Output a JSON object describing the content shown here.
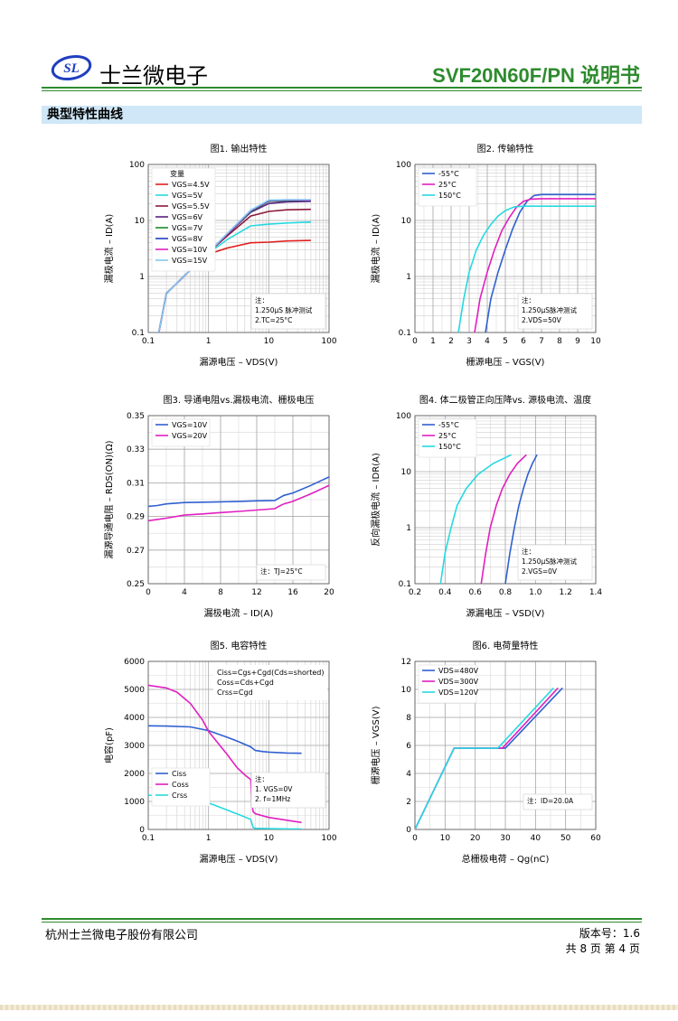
{
  "header": {
    "logo_text": "SL",
    "company": "士兰微电子",
    "doc_title": "SVF20N60F/PN 说明书"
  },
  "section_title": "典型特性曲线",
  "colors": {
    "accent_green": "#2e8b2e",
    "section_bg": "#cfe7f7"
  },
  "chart_data": [
    {
      "id": "fig1",
      "type": "line",
      "title": "图1. 输出特性",
      "xlabel": "漏源电压 – VDS(V)",
      "ylabel": "漏极电流 – ID(A)",
      "xscale": "log",
      "yscale": "log",
      "xlim": [
        0.1,
        100
      ],
      "ylim": [
        0.1,
        100
      ],
      "xticks": [
        0.1,
        1,
        10,
        100
      ],
      "xtick_labels": [
        "0.1",
        "1",
        "10",
        "100"
      ],
      "yticks": [
        0.1,
        1,
        10,
        100
      ],
      "ytick_labels": [
        "0.1",
        "1",
        "10",
        "100"
      ],
      "legend_title": "变量",
      "legend_position": "top-left",
      "note": [
        "注：",
        "1.250μS 脉冲测试",
        "2.TC=25°C"
      ],
      "series": [
        {
          "name": "VGS=4.5V",
          "color": "#e02020",
          "x": [
            0.15,
            0.2,
            0.5,
            1,
            2,
            5,
            10,
            20,
            50
          ],
          "y": [
            0.1,
            0.5,
            1.3,
            2.5,
            3.2,
            4.0,
            4.1,
            4.3,
            4.4
          ]
        },
        {
          "name": "VGS=5V",
          "color": "#27d9e0",
          "x": [
            0.15,
            0.2,
            0.5,
            1,
            2,
            5,
            10,
            20,
            50
          ],
          "y": [
            0.1,
            0.5,
            1.3,
            2.6,
            4.5,
            8.0,
            8.6,
            9.0,
            9.4
          ]
        },
        {
          "name": "VGS=5.5V",
          "color": "#8b1a3a",
          "x": [
            0.15,
            0.2,
            0.5,
            1,
            2,
            5,
            10,
            20,
            50
          ],
          "y": [
            0.1,
            0.5,
            1.3,
            2.7,
            5.2,
            12.0,
            14.5,
            15.5,
            15.8
          ]
        },
        {
          "name": "VGS=6V",
          "color": "#5a2080",
          "x": [
            0.15,
            0.2,
            0.5,
            1,
            2,
            5,
            10,
            20,
            50
          ],
          "y": [
            0.1,
            0.5,
            1.3,
            2.7,
            5.5,
            14.0,
            20.0,
            21.5,
            22.0
          ]
        },
        {
          "name": "VGS=7V",
          "color": "#1a8a2a",
          "x": [
            0.15,
            0.2,
            0.5,
            1,
            2,
            5,
            10,
            20,
            50
          ],
          "y": [
            0.1,
            0.5,
            1.3,
            2.7,
            5.6,
            14.5,
            22.0,
            22.5,
            23.0
          ]
        },
        {
          "name": "VGS=8V",
          "color": "#1f3fc0",
          "x": [
            0.15,
            0.2,
            0.5,
            1,
            2,
            5,
            10,
            20,
            50
          ],
          "y": [
            0.1,
            0.5,
            1.3,
            2.7,
            5.6,
            14.8,
            22.5,
            23.0,
            23.0
          ]
        },
        {
          "name": "VGS=10V",
          "color": "#e020c0",
          "x": [
            0.15,
            0.2,
            0.5,
            1,
            2,
            5,
            10,
            20,
            50
          ],
          "y": [
            0.1,
            0.5,
            1.3,
            2.7,
            5.6,
            15.0,
            22.8,
            23.2,
            23.2
          ]
        },
        {
          "name": "VGS=15V",
          "color": "#80c8f0",
          "x": [
            0.15,
            0.2,
            0.5,
            1,
            2,
            5,
            10,
            20,
            50
          ],
          "y": [
            0.1,
            0.5,
            1.3,
            2.7,
            5.7,
            15.2,
            23.0,
            23.5,
            23.5
          ]
        }
      ]
    },
    {
      "id": "fig2",
      "type": "line",
      "title": "图2. 传输特性",
      "xlabel": "栅源电压 – VGS(V)",
      "ylabel": "漏极电流 – ID(A)",
      "xscale": "linear",
      "yscale": "log",
      "xlim": [
        0,
        10
      ],
      "ylim": [
        0.1,
        100
      ],
      "xticks": [
        0,
        1,
        2,
        3,
        4,
        5,
        6,
        7,
        8,
        9,
        10
      ],
      "xtick_labels": [
        "0",
        "1",
        "2",
        "3",
        "4",
        "5",
        "6",
        "7",
        "8",
        "9",
        "10"
      ],
      "yticks": [
        0.1,
        1,
        10,
        100
      ],
      "ytick_labels": [
        "0.1",
        "1",
        "10",
        "100"
      ],
      "legend_position": "top-left",
      "note": [
        "注：",
        "1.250μS脉冲测试",
        "2.VDS=50V"
      ],
      "series": [
        {
          "name": "-55°C",
          "color": "#3060d0",
          "x": [
            3.9,
            4.2,
            4.6,
            5.0,
            5.4,
            5.8,
            6.2,
            6.6,
            7,
            8,
            10
          ],
          "y": [
            0.1,
            0.4,
            1.2,
            3.0,
            7.0,
            14.0,
            22.0,
            28.0,
            29.0,
            29.0,
            29.0
          ]
        },
        {
          "name": "25°C",
          "color": "#e020c0",
          "x": [
            3.3,
            3.6,
            4.0,
            4.4,
            4.8,
            5.2,
            5.6,
            6.0,
            6.4,
            7,
            10
          ],
          "y": [
            0.1,
            0.4,
            1.2,
            3.0,
            6.5,
            11.0,
            17.0,
            22.0,
            24.0,
            24.5,
            24.5
          ]
        },
        {
          "name": "150°C",
          "color": "#27d9e0",
          "x": [
            2.4,
            2.7,
            3.0,
            3.4,
            3.8,
            4.2,
            4.6,
            5.0,
            5.5,
            6,
            10
          ],
          "y": [
            0.1,
            0.4,
            1.2,
            3.0,
            5.5,
            8.5,
            12.0,
            15.0,
            17.5,
            18.0,
            18.0
          ]
        }
      ]
    },
    {
      "id": "fig3",
      "type": "line",
      "title": "图3. 导通电阻vs.漏极电流、栅极电压",
      "xlabel": "漏极电流 – ID(A)",
      "ylabel": "漏源导通电阻 – RDS(ON)(Ω)",
      "xscale": "linear",
      "yscale": "linear",
      "xlim": [
        0,
        20
      ],
      "ylim": [
        0.25,
        0.35
      ],
      "xticks": [
        0,
        4,
        8,
        12,
        16,
        20
      ],
      "xtick_labels": [
        "0",
        "4",
        "8",
        "12",
        "16",
        "20"
      ],
      "yticks": [
        0.25,
        0.27,
        0.29,
        0.31,
        0.33,
        0.35
      ],
      "ytick_labels": [
        "0.25",
        "0.27",
        "0.29",
        "0.31",
        "0.33",
        "0.35"
      ],
      "legend_position": "top-left",
      "note": [
        "注：TJ=25°C"
      ],
      "series": [
        {
          "name": "VGS=10V",
          "color": "#3060d0",
          "x": [
            0,
            1,
            2,
            4,
            6,
            8,
            10,
            12,
            14,
            14.5,
            15,
            16,
            18,
            20
          ],
          "y": [
            0.296,
            0.2965,
            0.2975,
            0.2983,
            0.2985,
            0.2987,
            0.299,
            0.2993,
            0.2995,
            0.301,
            0.3025,
            0.304,
            0.3085,
            0.3135
          ]
        },
        {
          "name": "VGS=20V",
          "color": "#e020c0",
          "x": [
            0,
            1,
            2,
            4,
            6,
            8,
            10,
            12,
            14,
            14.5,
            15,
            16,
            18,
            20
          ],
          "y": [
            0.2875,
            0.2882,
            0.289,
            0.2908,
            0.2915,
            0.2923,
            0.293,
            0.2938,
            0.2946,
            0.2962,
            0.2975,
            0.299,
            0.3035,
            0.3085
          ]
        }
      ]
    },
    {
      "id": "fig4",
      "type": "line",
      "title": "图4. 体二极管正向压降vs. 源极电流、温度",
      "xlabel": "源漏电压 – VSD(V)",
      "ylabel": "反向漏极电流 – IDR(A)",
      "xscale": "linear",
      "yscale": "log",
      "xlim": [
        0.2,
        1.4
      ],
      "ylim": [
        0.1,
        100
      ],
      "xticks": [
        0.2,
        0.4,
        0.6,
        0.8,
        1.0,
        1.2,
        1.4
      ],
      "xtick_labels": [
        "0.2",
        "0.4",
        "0.6",
        "0.8",
        "1.0",
        "1.2",
        "1.4"
      ],
      "yticks": [
        0.1,
        1,
        10,
        100
      ],
      "ytick_labels": [
        "0.1",
        "1",
        "10",
        "100"
      ],
      "legend_position": "top-left",
      "note": [
        "注：",
        "1.250μS脉冲测试",
        "2.VGS=0V"
      ],
      "series": [
        {
          "name": "-55°C",
          "color": "#3060d0",
          "x": [
            0.8,
            0.83,
            0.86,
            0.89,
            0.92,
            0.95,
            0.98,
            1.01
          ],
          "y": [
            0.1,
            0.35,
            1.0,
            2.5,
            5.0,
            9.0,
            14.0,
            20.0
          ]
        },
        {
          "name": "25°C",
          "color": "#e020c0",
          "x": [
            0.64,
            0.67,
            0.7,
            0.74,
            0.78,
            0.83,
            0.88,
            0.94
          ],
          "y": [
            0.1,
            0.35,
            1.0,
            2.5,
            5.0,
            9.0,
            14.0,
            20.0
          ]
        },
        {
          "name": "150°C",
          "color": "#27d9e0",
          "x": [
            0.37,
            0.4,
            0.44,
            0.48,
            0.54,
            0.62,
            0.72,
            0.84
          ],
          "y": [
            0.1,
            0.35,
            1.0,
            2.5,
            5.0,
            9.0,
            14.0,
            20.0
          ]
        }
      ]
    },
    {
      "id": "fig5",
      "type": "line",
      "title": "图5. 电容特性",
      "xlabel": "漏源电压 – VDS(V)",
      "ylabel": "电容(pF)",
      "xscale": "log",
      "yscale": "linear",
      "xlim": [
        0.1,
        100
      ],
      "ylim": [
        0,
        6000
      ],
      "xticks": [
        0.1,
        1,
        10,
        100
      ],
      "xtick_labels": [
        "0.1",
        "1",
        "10",
        "100"
      ],
      "yticks": [
        0,
        1000,
        2000,
        3000,
        4000,
        5000,
        6000
      ],
      "ytick_labels": [
        "0",
        "1000",
        "2000",
        "3000",
        "4000",
        "5000",
        "6000"
      ],
      "formula_box": [
        "Ciss=Cgs+Cgd(Cds=shorted)",
        "Coss=Cds+Cgd",
        "Crss=Cgd"
      ],
      "legend_position": "bottom-left",
      "note": [
        "注：",
        "1. VGS=0V",
        "2. f=1MHz"
      ],
      "series": [
        {
          "name": "Ciss",
          "color": "#3060d0",
          "x": [
            0.1,
            0.2,
            0.5,
            1,
            2,
            3,
            5,
            6,
            8,
            10,
            20,
            35
          ],
          "y": [
            3700,
            3690,
            3660,
            3530,
            3300,
            3150,
            2950,
            2820,
            2780,
            2760,
            2730,
            2720
          ]
        },
        {
          "name": "Coss",
          "color": "#e020c0",
          "x": [
            0.1,
            0.2,
            0.3,
            0.5,
            0.8,
            1,
            2,
            3,
            4,
            5,
            5.3,
            5.5,
            6,
            10,
            20,
            35
          ],
          "y": [
            5150,
            5050,
            4900,
            4500,
            3900,
            3500,
            2700,
            2200,
            1950,
            1780,
            850,
            640,
            560,
            430,
            330,
            250
          ]
        },
        {
          "name": "Crss",
          "color": "#27d9e0",
          "x": [
            0.1,
            0.2,
            0.5,
            1,
            2,
            3,
            5,
            5.5,
            6,
            10,
            20,
            35
          ],
          "y": [
            1220,
            1210,
            1130,
            950,
            700,
            550,
            360,
            70,
            40,
            30,
            20,
            15
          ]
        }
      ]
    },
    {
      "id": "fig6",
      "type": "line",
      "title": "图6. 电荷量特性",
      "xlabel": "总栅极电荷 – Qg(nC)",
      "ylabel": "栅源电压 – VGS(V)",
      "xscale": "linear",
      "yscale": "linear",
      "xlim": [
        0,
        60
      ],
      "ylim": [
        0,
        12
      ],
      "xticks": [
        0,
        10,
        20,
        30,
        40,
        50,
        60
      ],
      "xtick_labels": [
        "0",
        "10",
        "20",
        "30",
        "40",
        "50",
        "60"
      ],
      "yticks": [
        0,
        2,
        4,
        6,
        8,
        10,
        12
      ],
      "ytick_labels": [
        "0",
        "2",
        "4",
        "6",
        "8",
        "10",
        "12"
      ],
      "legend_position": "top-left",
      "note": [
        "注：ID=20.0A"
      ],
      "series": [
        {
          "name": "VDS=480V",
          "color": "#3060d0",
          "x": [
            0,
            13,
            30,
            49
          ],
          "y": [
            0,
            5.8,
            5.8,
            10.1
          ]
        },
        {
          "name": "VDS=300V",
          "color": "#e020c0",
          "x": [
            0,
            13,
            29,
            47.5
          ],
          "y": [
            0,
            5.8,
            5.8,
            10.1
          ]
        },
        {
          "name": "VDS=120V",
          "color": "#27d9e0",
          "x": [
            0,
            13,
            27.5,
            46
          ],
          "y": [
            0,
            5.8,
            5.8,
            10.1
          ]
        }
      ]
    }
  ],
  "footer": {
    "company": "杭州士兰微电子股份有限公司",
    "version": "版本号：1.6",
    "pages": "共 8 页   第 4 页"
  }
}
